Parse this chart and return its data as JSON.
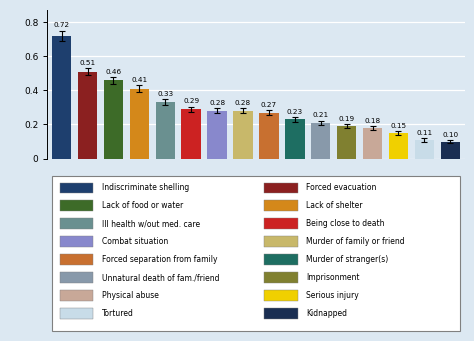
{
  "values": [
    0.72,
    0.51,
    0.46,
    0.41,
    0.33,
    0.29,
    0.28,
    0.28,
    0.27,
    0.23,
    0.21,
    0.19,
    0.18,
    0.15,
    0.11,
    0.1
  ],
  "errors": [
    0.03,
    0.022,
    0.02,
    0.02,
    0.017,
    0.015,
    0.014,
    0.014,
    0.014,
    0.013,
    0.012,
    0.012,
    0.012,
    0.011,
    0.01,
    0.01
  ],
  "bar_colors": [
    "#1e3f6e",
    "#8b2020",
    "#3d6b28",
    "#d4881a",
    "#6a9090",
    "#cc2222",
    "#8888cc",
    "#c8b86a",
    "#c87030",
    "#1e6e62",
    "#8899aa",
    "#808030",
    "#c8a898",
    "#f0d000",
    "#c8dce8",
    "#1a2e52"
  ],
  "labels_left": [
    "Indiscriminate shelling",
    "Lack of food or water",
    "Ill health w/out med. care",
    "Combat situation",
    "Forced separation from family",
    "Unnatural death of fam./friend",
    "Physical abuse",
    "Tortured"
  ],
  "labels_right": [
    "Forced evacuation",
    "Lack of shelter",
    "Being close to death",
    "Murder of family or friend",
    "Murder of stranger(s)",
    "Imprisonment",
    "Serious injury",
    "Kidnapped"
  ],
  "bar_order_colors": [
    0,
    1,
    2,
    3,
    4,
    5,
    6,
    7,
    8,
    9,
    10,
    11,
    12,
    13,
    14,
    15
  ],
  "legend_left_indices": [
    0,
    2,
    4,
    6,
    8,
    10,
    12,
    14
  ],
  "legend_right_indices": [
    1,
    3,
    5,
    7,
    9,
    11,
    13,
    15
  ],
  "ylim": [
    0,
    0.87
  ],
  "yticks": [
    0.0,
    0.2,
    0.4,
    0.6,
    0.8
  ],
  "background_color": "#dce8f2"
}
